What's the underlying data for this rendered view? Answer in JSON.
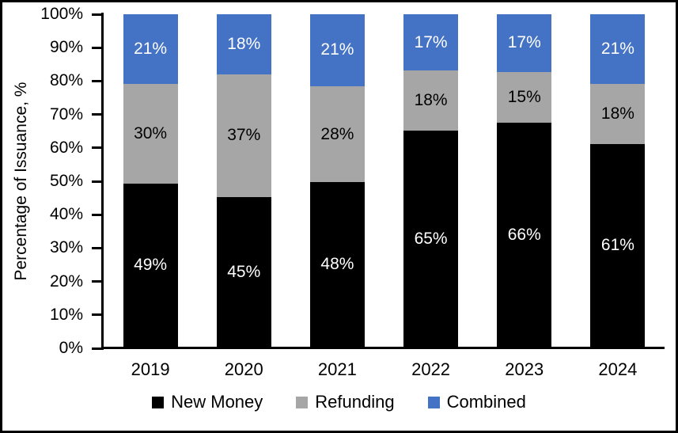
{
  "axis": {
    "ylabel": "Percentage of Issuance, %"
  },
  "chart_data": {
    "type": "bar",
    "stacked": true,
    "title": "",
    "xlabel": "",
    "ylabel": "Percentage of Issuance, %",
    "categories": [
      "2019",
      "2020",
      "2021",
      "2022",
      "2023",
      "2024"
    ],
    "series": [
      {
        "name": "New Money",
        "color": "#000000",
        "label_color": "#ffffff",
        "values": [
          49,
          45,
          48,
          65,
          66,
          61
        ]
      },
      {
        "name": "Refunding",
        "color": "#a6a6a6",
        "label_color": "#000000",
        "values": [
          30,
          37,
          28,
          18,
          15,
          18
        ]
      },
      {
        "name": "Combined",
        "color": "#4472c4",
        "label_color": "#ffffff",
        "values": [
          21,
          18,
          21,
          17,
          17,
          21
        ]
      }
    ],
    "value_suffix": "%",
    "ylim": [
      0,
      100
    ],
    "ytick_step": 10,
    "ytick_labels": [
      "0%",
      "10%",
      "20%",
      "30%",
      "40%",
      "50%",
      "60%",
      "70%",
      "80%",
      "90%",
      "100%"
    ],
    "grid": false,
    "legend_position": "bottom",
    "colors": {
      "axis": "#000000",
      "background": "#ffffff",
      "frame_border": "#000000"
    }
  }
}
